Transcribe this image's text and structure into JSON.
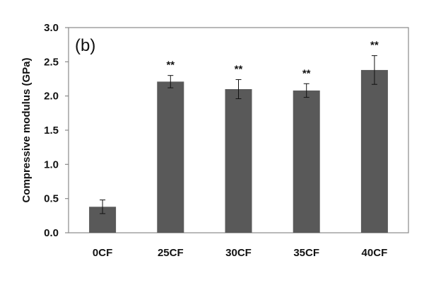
{
  "chart_data": {
    "type": "bar",
    "panel_label": "(b)",
    "title": "",
    "xlabel": "",
    "ylabel": "Compressive modulus (GPa)",
    "categories": [
      "0CF",
      "25CF",
      "30CF",
      "35CF",
      "40CF"
    ],
    "values": [
      0.38,
      2.21,
      2.1,
      2.08,
      2.38
    ],
    "errors": [
      0.1,
      0.09,
      0.14,
      0.1,
      0.21
    ],
    "annotations": [
      "",
      "**",
      "**",
      "**",
      "**"
    ],
    "ylim": [
      0,
      3.0
    ],
    "yticks": [
      "0.0",
      "0.5",
      "1.0",
      "1.5",
      "2.0",
      "2.5",
      "3.0"
    ],
    "grid": false,
    "colors": {
      "bar": "#595959",
      "axis": "#7f7f7f",
      "text": "#111111"
    }
  }
}
